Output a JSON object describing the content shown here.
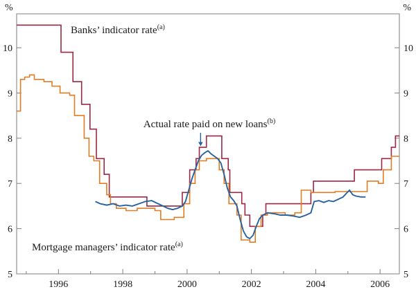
{
  "chart_data": {
    "type": "line",
    "ylabel_left": "%",
    "ylabel_right": "%",
    "xlim": [
      1994.7,
      2006.6
    ],
    "ylim": [
      5,
      10.75
    ],
    "yticks": [
      5,
      6,
      7,
      8,
      9,
      10
    ],
    "xticks": [
      1996,
      1998,
      2000,
      2002,
      2004,
      2006
    ],
    "grid": false,
    "legend_position": "inline-labels",
    "series": [
      {
        "name": "Banks’ indicator rate",
        "superscript": "(a)",
        "color": "#9b2743",
        "style": "step",
        "points": [
          [
            1994.7,
            10.5
          ],
          [
            1996.08,
            10.5
          ],
          [
            1996.08,
            9.9
          ],
          [
            1996.45,
            9.9
          ],
          [
            1996.45,
            9.25
          ],
          [
            1996.72,
            9.25
          ],
          [
            1996.72,
            8.75
          ],
          [
            1996.98,
            8.75
          ],
          [
            1996.98,
            8.2
          ],
          [
            1997.18,
            8.2
          ],
          [
            1997.18,
            7.55
          ],
          [
            1997.42,
            7.55
          ],
          [
            1997.42,
            7.2
          ],
          [
            1997.58,
            7.2
          ],
          [
            1997.58,
            6.7
          ],
          [
            1998.75,
            6.7
          ],
          [
            1998.75,
            6.5
          ],
          [
            1999.85,
            6.5
          ],
          [
            1999.85,
            6.8
          ],
          [
            2000.08,
            6.8
          ],
          [
            2000.08,
            7.3
          ],
          [
            2000.28,
            7.3
          ],
          [
            2000.28,
            7.55
          ],
          [
            2000.38,
            7.55
          ],
          [
            2000.38,
            7.8
          ],
          [
            2000.6,
            7.8
          ],
          [
            2000.6,
            8.05
          ],
          [
            2001.08,
            8.05
          ],
          [
            2001.08,
            7.55
          ],
          [
            2001.28,
            7.55
          ],
          [
            2001.28,
            7.3
          ],
          [
            2001.33,
            7.3
          ],
          [
            2001.33,
            6.8
          ],
          [
            2001.7,
            6.8
          ],
          [
            2001.7,
            6.55
          ],
          [
            2001.8,
            6.55
          ],
          [
            2001.8,
            6.3
          ],
          [
            2001.95,
            6.3
          ],
          [
            2001.95,
            6.05
          ],
          [
            2002.35,
            6.05
          ],
          [
            2002.35,
            6.3
          ],
          [
            2002.45,
            6.3
          ],
          [
            2002.45,
            6.55
          ],
          [
            2003.85,
            6.55
          ],
          [
            2003.85,
            6.8
          ],
          [
            2003.93,
            6.8
          ],
          [
            2003.93,
            7.05
          ],
          [
            2005.2,
            7.05
          ],
          [
            2005.2,
            7.3
          ],
          [
            2006.05,
            7.3
          ],
          [
            2006.05,
            7.55
          ],
          [
            2006.35,
            7.55
          ],
          [
            2006.35,
            7.8
          ],
          [
            2006.48,
            7.8
          ],
          [
            2006.48,
            8.05
          ],
          [
            2006.6,
            8.05
          ]
        ]
      },
      {
        "name": "Mortgage managers’ indicator rate",
        "superscript": "(a)",
        "color": "#e07c24",
        "style": "step",
        "points": [
          [
            1994.7,
            8.6
          ],
          [
            1994.82,
            8.6
          ],
          [
            1994.82,
            9.3
          ],
          [
            1994.95,
            9.3
          ],
          [
            1994.95,
            9.35
          ],
          [
            1995.1,
            9.35
          ],
          [
            1995.1,
            9.4
          ],
          [
            1995.25,
            9.4
          ],
          [
            1995.25,
            9.3
          ],
          [
            1995.55,
            9.3
          ],
          [
            1995.55,
            9.25
          ],
          [
            1995.8,
            9.25
          ],
          [
            1995.8,
            9.15
          ],
          [
            1996.05,
            9.15
          ],
          [
            1996.05,
            9.0
          ],
          [
            1996.35,
            9.0
          ],
          [
            1996.35,
            8.95
          ],
          [
            1996.5,
            8.95
          ],
          [
            1996.5,
            8.5
          ],
          [
            1996.8,
            8.5
          ],
          [
            1996.8,
            8.0
          ],
          [
            1996.95,
            8.0
          ],
          [
            1996.95,
            7.6
          ],
          [
            1997.1,
            7.6
          ],
          [
            1997.1,
            7.5
          ],
          [
            1997.28,
            7.5
          ],
          [
            1997.28,
            7.0
          ],
          [
            1997.5,
            7.0
          ],
          [
            1997.5,
            6.75
          ],
          [
            1997.62,
            6.75
          ],
          [
            1997.62,
            6.55
          ],
          [
            1997.8,
            6.55
          ],
          [
            1997.8,
            6.45
          ],
          [
            1998.1,
            6.45
          ],
          [
            1998.1,
            6.4
          ],
          [
            1998.45,
            6.4
          ],
          [
            1998.45,
            6.45
          ],
          [
            1999.0,
            6.45
          ],
          [
            1999.0,
            6.4
          ],
          [
            1999.18,
            6.4
          ],
          [
            1999.18,
            6.2
          ],
          [
            1999.6,
            6.2
          ],
          [
            1999.6,
            6.25
          ],
          [
            1999.9,
            6.25
          ],
          [
            1999.9,
            6.55
          ],
          [
            2000.08,
            6.55
          ],
          [
            2000.08,
            7.0
          ],
          [
            2000.25,
            7.0
          ],
          [
            2000.25,
            7.3
          ],
          [
            2000.38,
            7.3
          ],
          [
            2000.38,
            7.5
          ],
          [
            2000.6,
            7.5
          ],
          [
            2000.6,
            7.55
          ],
          [
            2001.0,
            7.55
          ],
          [
            2001.0,
            7.3
          ],
          [
            2001.15,
            7.3
          ],
          [
            2001.15,
            7.0
          ],
          [
            2001.3,
            7.0
          ],
          [
            2001.3,
            6.55
          ],
          [
            2001.55,
            6.55
          ],
          [
            2001.55,
            6.3
          ],
          [
            2001.68,
            6.3
          ],
          [
            2001.68,
            5.75
          ],
          [
            2001.95,
            5.75
          ],
          [
            2001.95,
            5.7
          ],
          [
            2002.12,
            5.7
          ],
          [
            2002.12,
            6.05
          ],
          [
            2002.3,
            6.05
          ],
          [
            2002.3,
            6.3
          ],
          [
            2002.5,
            6.3
          ],
          [
            2002.5,
            6.35
          ],
          [
            2003.05,
            6.35
          ],
          [
            2003.05,
            6.3
          ],
          [
            2003.35,
            6.3
          ],
          [
            2003.35,
            6.35
          ],
          [
            2003.55,
            6.35
          ],
          [
            2003.55,
            6.85
          ],
          [
            2003.85,
            6.85
          ],
          [
            2003.85,
            6.8
          ],
          [
            2004.6,
            6.8
          ],
          [
            2004.6,
            6.82
          ],
          [
            2005.6,
            6.82
          ],
          [
            2005.6,
            7.05
          ],
          [
            2005.95,
            7.05
          ],
          [
            2005.95,
            7.0
          ],
          [
            2006.1,
            7.0
          ],
          [
            2006.1,
            7.3
          ],
          [
            2006.35,
            7.3
          ],
          [
            2006.35,
            7.6
          ],
          [
            2006.6,
            7.6
          ]
        ]
      },
      {
        "name": "Actual rate paid on new loans",
        "superscript": "(b)",
        "color": "#27629f",
        "style": "line",
        "points": [
          [
            1997.15,
            6.6
          ],
          [
            1997.3,
            6.55
          ],
          [
            1997.5,
            6.52
          ],
          [
            1997.7,
            6.55
          ],
          [
            1997.9,
            6.5
          ],
          [
            1998.1,
            6.52
          ],
          [
            1998.3,
            6.5
          ],
          [
            1998.5,
            6.55
          ],
          [
            1998.7,
            6.6
          ],
          [
            1998.9,
            6.62
          ],
          [
            1999.1,
            6.55
          ],
          [
            1999.25,
            6.5
          ],
          [
            1999.4,
            6.45
          ],
          [
            1999.55,
            6.42
          ],
          [
            1999.7,
            6.45
          ],
          [
            1999.85,
            6.5
          ],
          [
            1999.95,
            6.6
          ],
          [
            2000.05,
            6.85
          ],
          [
            2000.15,
            7.1
          ],
          [
            2000.25,
            7.3
          ],
          [
            2000.35,
            7.5
          ],
          [
            2000.45,
            7.62
          ],
          [
            2000.55,
            7.68
          ],
          [
            2000.65,
            7.72
          ],
          [
            2000.75,
            7.65
          ],
          [
            2000.85,
            7.6
          ],
          [
            2000.95,
            7.55
          ],
          [
            2001.05,
            7.45
          ],
          [
            2001.15,
            7.2
          ],
          [
            2001.25,
            6.9
          ],
          [
            2001.35,
            6.7
          ],
          [
            2001.45,
            6.62
          ],
          [
            2001.55,
            6.5
          ],
          [
            2001.65,
            6.2
          ],
          [
            2001.75,
            5.95
          ],
          [
            2001.85,
            5.82
          ],
          [
            2001.95,
            5.78
          ],
          [
            2002.05,
            5.85
          ],
          [
            2002.15,
            6.05
          ],
          [
            2002.25,
            6.22
          ],
          [
            2002.35,
            6.3
          ],
          [
            2002.5,
            6.35
          ],
          [
            2002.7,
            6.33
          ],
          [
            2002.9,
            6.3
          ],
          [
            2003.1,
            6.3
          ],
          [
            2003.3,
            6.28
          ],
          [
            2003.5,
            6.25
          ],
          [
            2003.7,
            6.3
          ],
          [
            2003.85,
            6.35
          ],
          [
            2003.95,
            6.6
          ],
          [
            2004.1,
            6.62
          ],
          [
            2004.25,
            6.58
          ],
          [
            2004.4,
            6.62
          ],
          [
            2004.55,
            6.6
          ],
          [
            2004.7,
            6.65
          ],
          [
            2004.85,
            6.7
          ],
          [
            2004.95,
            6.78
          ],
          [
            2005.05,
            6.85
          ],
          [
            2005.15,
            6.75
          ],
          [
            2005.25,
            6.72
          ],
          [
            2005.4,
            6.7
          ],
          [
            2005.55,
            6.7
          ]
        ]
      }
    ],
    "annotation": {
      "label": "Actual rate paid on new loans",
      "superscript": "(b)",
      "arrow_x": 2000.42,
      "arrow_y_from": 8.12,
      "arrow_y_to": 7.84
    }
  }
}
